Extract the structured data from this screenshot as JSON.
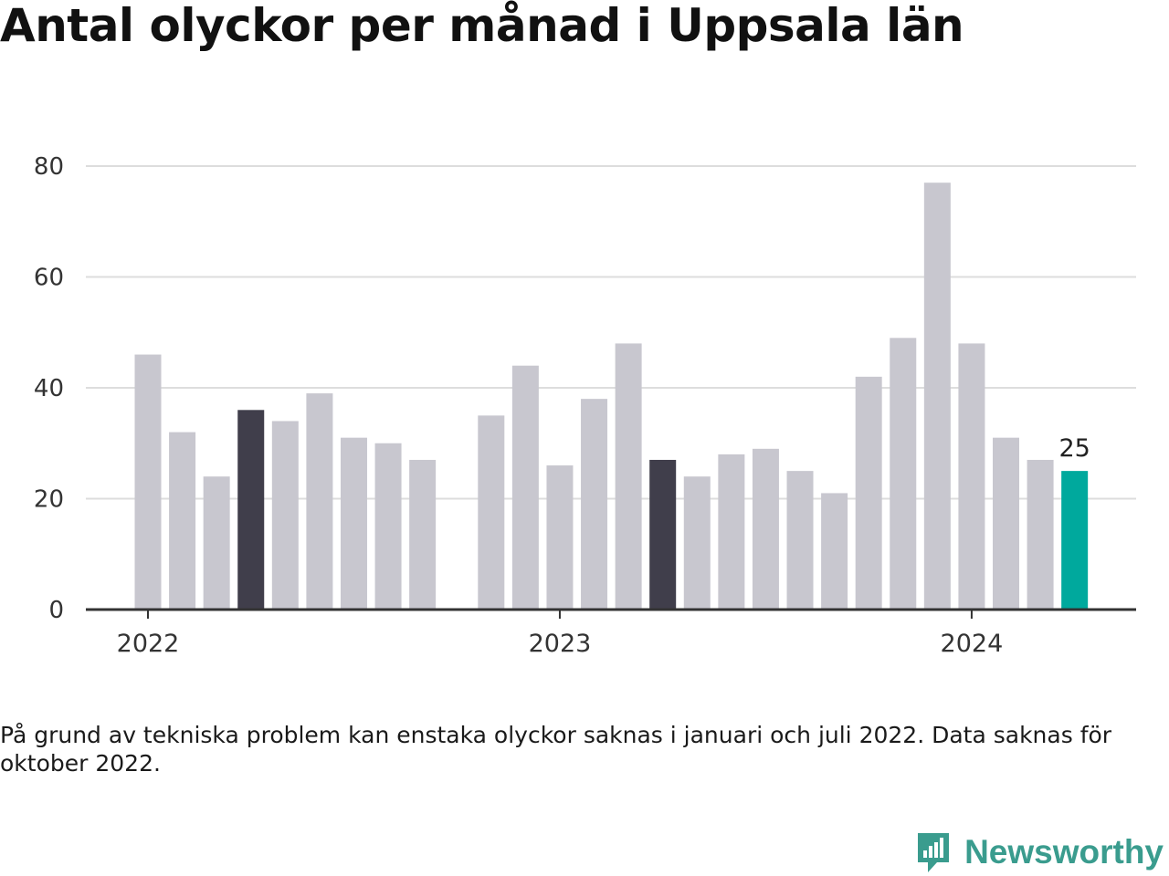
{
  "title": "Antal olyckor per månad i Uppsala län",
  "note": "På grund av tekniska problem kan enstaka olyckor saknas i januari och juli 2022. Data saknas för oktober 2022.",
  "brand": {
    "name": "Newsworthy",
    "icon": "newsworthy-logo-icon"
  },
  "colors": {
    "default": "#c8c7cf",
    "highlight": "#403e4b",
    "latest": "#00a99d",
    "grid": "#dddddd",
    "axis": "#333333"
  },
  "chart_data": {
    "type": "bar",
    "ylim": [
      0,
      80
    ],
    "yticks": [
      0,
      20,
      40,
      60,
      80
    ],
    "year_labels": [
      {
        "month": "2022-01",
        "label": "2022"
      },
      {
        "month": "2023-01",
        "label": "2023"
      },
      {
        "month": "2024-01",
        "label": "2024"
      }
    ],
    "bars": [
      {
        "month": "2022-01",
        "value": 46,
        "style": "default"
      },
      {
        "month": "2022-02",
        "value": 32,
        "style": "default"
      },
      {
        "month": "2022-03",
        "value": 24,
        "style": "default"
      },
      {
        "month": "2022-04",
        "value": 36,
        "style": "highlight"
      },
      {
        "month": "2022-05",
        "value": 34,
        "style": "default"
      },
      {
        "month": "2022-06",
        "value": 39,
        "style": "default"
      },
      {
        "month": "2022-07",
        "value": 31,
        "style": "default"
      },
      {
        "month": "2022-08",
        "value": 30,
        "style": "default"
      },
      {
        "month": "2022-09",
        "value": 27,
        "style": "default"
      },
      {
        "month": "2022-10",
        "value": null,
        "style": "default"
      },
      {
        "month": "2022-11",
        "value": 35,
        "style": "default"
      },
      {
        "month": "2022-12",
        "value": 44,
        "style": "default"
      },
      {
        "month": "2023-01",
        "value": 26,
        "style": "default"
      },
      {
        "month": "2023-02",
        "value": 38,
        "style": "default"
      },
      {
        "month": "2023-03",
        "value": 48,
        "style": "default"
      },
      {
        "month": "2023-04",
        "value": 27,
        "style": "highlight"
      },
      {
        "month": "2023-05",
        "value": 24,
        "style": "default"
      },
      {
        "month": "2023-06",
        "value": 28,
        "style": "default"
      },
      {
        "month": "2023-07",
        "value": 29,
        "style": "default"
      },
      {
        "month": "2023-08",
        "value": 25,
        "style": "default"
      },
      {
        "month": "2023-09",
        "value": 21,
        "style": "default"
      },
      {
        "month": "2023-10",
        "value": 42,
        "style": "default"
      },
      {
        "month": "2023-11",
        "value": 49,
        "style": "default"
      },
      {
        "month": "2023-12",
        "value": 77,
        "style": "default"
      },
      {
        "month": "2024-01",
        "value": 48,
        "style": "default"
      },
      {
        "month": "2024-02",
        "value": 31,
        "style": "default"
      },
      {
        "month": "2024-03",
        "value": 27,
        "style": "default"
      },
      {
        "month": "2024-04",
        "value": 25,
        "style": "latest"
      }
    ],
    "value_label": {
      "month": "2024-04",
      "text": "25"
    }
  }
}
